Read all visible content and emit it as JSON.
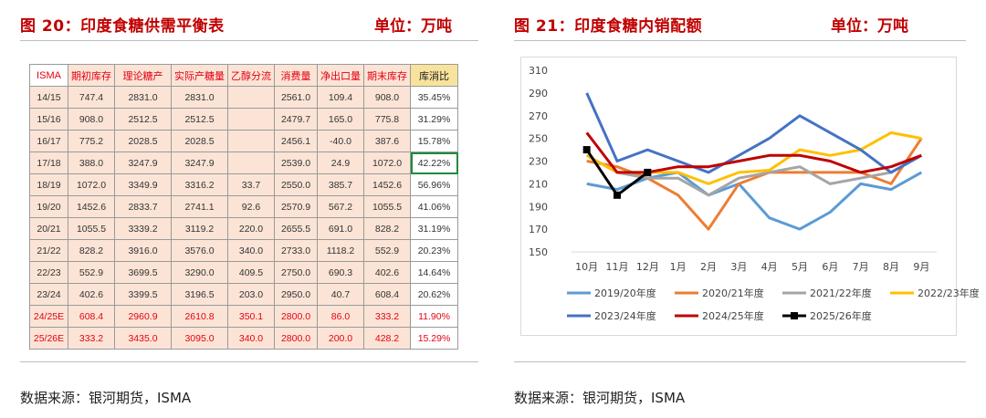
{
  "left_panel": {
    "title": "图 20：印度食糖供需平衡表",
    "unit": "单位：万吨",
    "source": "数据来源：银河期货，ISMA"
  },
  "right_panel": {
    "title": "图 21：印度食糖内销配额",
    "unit": "单位：万吨",
    "source": "数据来源：银河期货，ISMA"
  },
  "chart_data": [
    {
      "type": "table",
      "columns": [
        "ISMA",
        "期初库存",
        "理论糖产",
        "实际产糖量",
        "乙醇分流",
        "消费量",
        "净出口量",
        "期末库存",
        "库消比"
      ],
      "rows": [
        [
          "14/15",
          "747.4",
          "2831.0",
          "2831.0",
          "",
          "2561.0",
          "109.4",
          "908.0",
          "35.45%"
        ],
        [
          "15/16",
          "908.0",
          "2512.5",
          "2512.5",
          "",
          "2479.7",
          "165.0",
          "775.8",
          "31.29%"
        ],
        [
          "16/17",
          "775.2",
          "2028.5",
          "2028.5",
          "",
          "2456.1",
          "-40.0",
          "387.6",
          "15.78%"
        ],
        [
          "17/18",
          "388.0",
          "3247.9",
          "3247.9",
          "",
          "2539.0",
          "24.9",
          "1072.0",
          "42.22%"
        ],
        [
          "18/19",
          "1072.0",
          "3349.9",
          "3316.2",
          "33.7",
          "2550.0",
          "385.7",
          "1452.6",
          "56.96%"
        ],
        [
          "19/20",
          "1452.6",
          "2833.7",
          "2741.1",
          "92.6",
          "2570.9",
          "567.2",
          "1055.5",
          "41.06%"
        ],
        [
          "20/21",
          "1055.5",
          "3339.2",
          "3119.2",
          "220.0",
          "2655.5",
          "691.0",
          "828.2",
          "31.19%"
        ],
        [
          "21/22",
          "828.2",
          "3916.0",
          "3576.0",
          "340.0",
          "2733.0",
          "1118.2",
          "552.9",
          "20.23%"
        ],
        [
          "22/23",
          "552.9",
          "3699.5",
          "3290.0",
          "409.5",
          "2750.0",
          "690.3",
          "402.6",
          "14.64%"
        ],
        [
          "23/24",
          "402.6",
          "3399.5",
          "3196.5",
          "203.0",
          "2950.0",
          "40.7",
          "608.4",
          "20.62%"
        ],
        [
          "24/25E",
          "608.4",
          "2960.9",
          "2610.8",
          "350.1",
          "2800.0",
          "86.0",
          "333.2",
          "11.90%"
        ],
        [
          "25/26E",
          "333.2",
          "3435.0",
          "3095.0",
          "340.0",
          "2800.0",
          "200.0",
          "428.2",
          "15.29%"
        ]
      ],
      "estimate_rows": [
        10,
        11
      ],
      "highlighted_cell": {
        "row": 3,
        "col": 8
      }
    },
    {
      "type": "line",
      "categories": [
        "10月",
        "11月",
        "12月",
        "1月",
        "2月",
        "3月",
        "4月",
        "5月",
        "6月",
        "7月",
        "8月",
        "9月"
      ],
      "ylim": [
        150,
        310
      ],
      "yticks": [
        150,
        170,
        190,
        210,
        230,
        250,
        270,
        290,
        310
      ],
      "grid": false,
      "legend_position": "bottom",
      "series": [
        {
          "name": "2019/20年度",
          "color": "#5b9bd5",
          "values": [
            210,
            205,
            215,
            220,
            200,
            210,
            180,
            170,
            185,
            210,
            205,
            220
          ]
        },
        {
          "name": "2020/21年度",
          "color": "#ed7d31",
          "values": [
            230,
            225,
            215,
            200,
            170,
            210,
            220,
            220,
            220,
            220,
            210,
            250
          ]
        },
        {
          "name": "2021/22年度",
          "color": "#a5a5a5",
          "values": [
            235,
            220,
            215,
            215,
            200,
            215,
            220,
            225,
            210,
            215,
            220,
            235
          ]
        },
        {
          "name": "2022/23年度",
          "color": "#ffc000",
          "values": [
            235,
            220,
            220,
            220,
            210,
            220,
            222,
            240,
            235,
            240,
            255,
            250
          ]
        },
        {
          "name": "2023/24年度",
          "color": "#4472c4",
          "values": [
            290,
            230,
            240,
            230,
            220,
            235,
            250,
            270,
            255,
            240,
            220,
            235
          ]
        },
        {
          "name": "2024/25年度",
          "color": "#c00000",
          "values": [
            255,
            220,
            220,
            225,
            225,
            230,
            235,
            235,
            230,
            220,
            225,
            235
          ]
        },
        {
          "name": "2025/26年度",
          "color": "#000000",
          "values": [
            240,
            200,
            220,
            null,
            null,
            null,
            null,
            null,
            null,
            null,
            null,
            null
          ],
          "markers": "square"
        }
      ]
    }
  ]
}
